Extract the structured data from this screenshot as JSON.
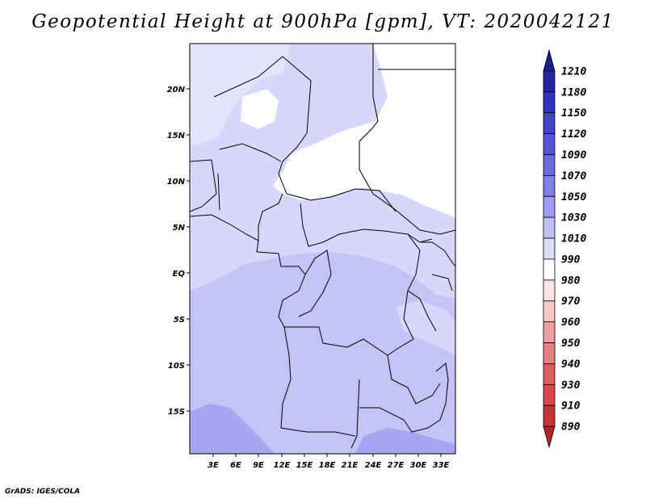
{
  "title": "Geopotential Height at 900hPa [gpm], VT: 2020042121",
  "credit": "GrADS: IGES/COLA",
  "map": {
    "lat_ticks": [
      "20N",
      "15N",
      "10N",
      "5N",
      "EQ",
      "5S",
      "10S",
      "15S"
    ],
    "lon_ticks": [
      "3E",
      "6E",
      "9E",
      "12E",
      "15E",
      "18E",
      "21E",
      "24E",
      "27E",
      "30E",
      "33E"
    ]
  },
  "colorbar": {
    "levels": [
      "1210",
      "1180",
      "1150",
      "1120",
      "1090",
      "1070",
      "1050",
      "1030",
      "1010",
      "990",
      "980",
      "970",
      "960",
      "950",
      "940",
      "930",
      "910",
      "890"
    ],
    "colors": [
      "#1c1c8a",
      "#2626a6",
      "#3333c0",
      "#4444cc",
      "#5757d6",
      "#6b6be0",
      "#8080ea",
      "#9d9df2",
      "#c0c0f8",
      "#dcdcfc",
      "#ffffff",
      "#fce4e4",
      "#f8c8c8",
      "#f0a0a0",
      "#e88080",
      "#e06060",
      "#d84848",
      "#c83434",
      "#b82424"
    ]
  }
}
